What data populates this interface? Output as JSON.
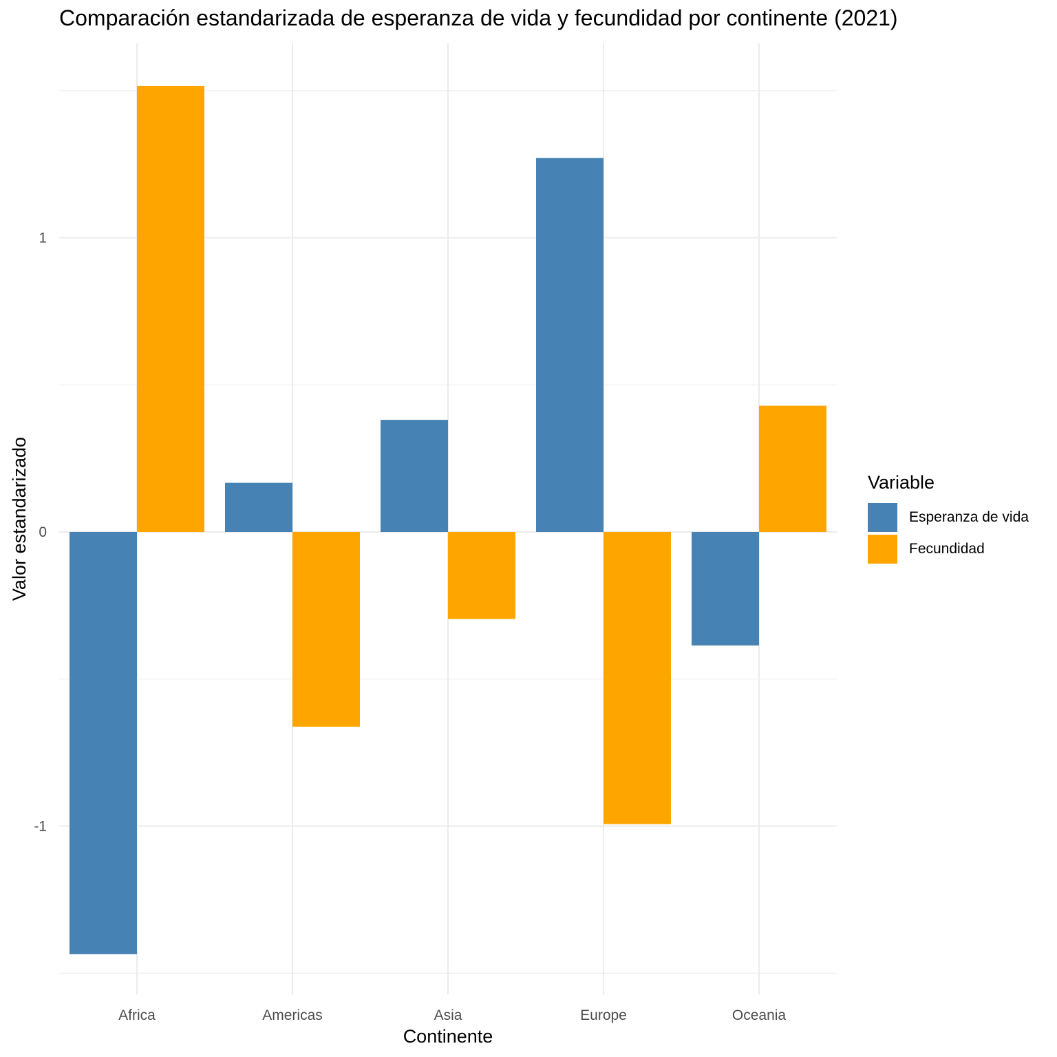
{
  "chart_data": {
    "type": "bar",
    "title": "Comparación estandarizada de esperanza de vida y fecundidad por continente (2021)",
    "xlabel": "Continente",
    "ylabel": "Valor estandarizado",
    "categories": [
      "Africa",
      "Americas",
      "Asia",
      "Europe",
      "Oceania"
    ],
    "series": [
      {
        "name": "Esperanza de vida",
        "color": "#4682B4",
        "values": [
          -1.435,
          0.167,
          0.381,
          1.271,
          -0.386
        ]
      },
      {
        "name": "Fecundidad",
        "color": "#FFA500",
        "values": [
          1.516,
          -0.662,
          -0.296,
          -0.993,
          0.429
        ]
      }
    ],
    "yticks": [
      -1,
      0,
      1
    ],
    "ylim": [
      -1.5,
      1.5
    ],
    "grid": true,
    "legend": {
      "title": "Variable",
      "position": "right"
    }
  }
}
